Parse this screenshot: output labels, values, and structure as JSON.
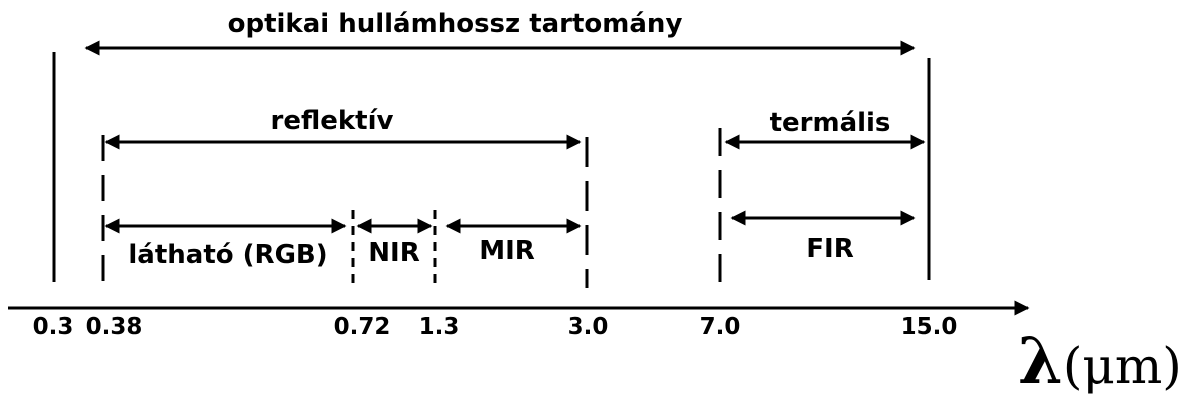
{
  "diagram": {
    "title": "optikai hullámhossz tartomány",
    "groups": {
      "reflective": "reflektív",
      "thermal": "termális"
    },
    "bands": {
      "visible": "látható (RGB)",
      "nir": "NIR",
      "mir": "MIR",
      "fir": "FIR"
    },
    "ticks": [
      "0.3",
      "0.38",
      "0.72",
      "1.3",
      "3.0",
      "7.0",
      "15.0"
    ],
    "unit": {
      "lambda": "λ",
      "unit": "(μm)"
    }
  }
}
